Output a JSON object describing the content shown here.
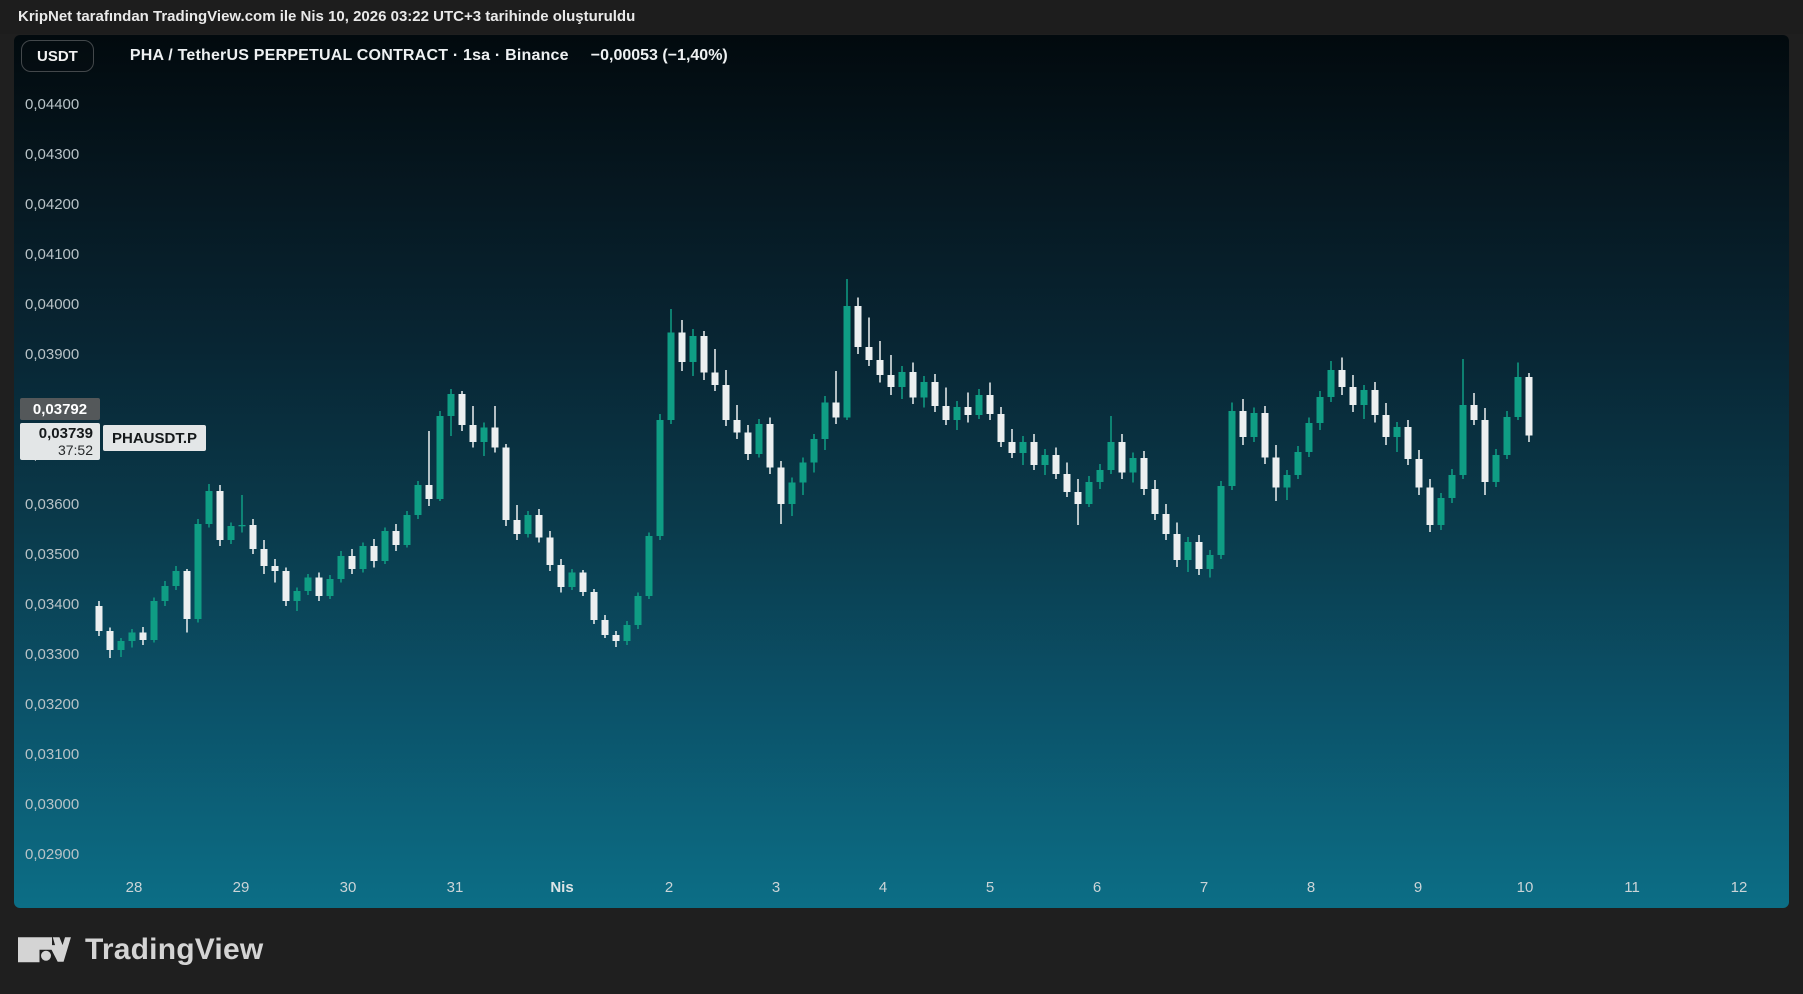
{
  "attribution": "KripNet tarafından TradingView.com ile Nis 10, 2026 03:22 UTC+3 tarihinde oluşturuldu",
  "header": {
    "currency_button": "USDT",
    "symbol_title": "PHA / TetherUS PERPETUAL CONTRACT · 1sa · Binance",
    "change": "−0,00053 (−1,40%)"
  },
  "price_scale": {
    "badge_price": "0,03792",
    "last_price": "0,03739",
    "countdown": "37:52",
    "symbol_label": "PHAUSDT.P"
  },
  "footer": {
    "logo_text": "TradingView"
  },
  "chart_data": {
    "type": "candlestick",
    "title": "PHA / TetherUS PERPETUAL CONTRACT",
    "symbol": "PHAUSDT.P",
    "interval": "1sa",
    "exchange": "Binance",
    "last_price": 0.03739,
    "change_abs": -0.00053,
    "change_pct": -1.4,
    "price_unit": "price values in 1e-5 USDT (3739 = 0,03739)",
    "up_color": "#0f9d84",
    "down_color": "#eceff0",
    "grid": "off",
    "legend_position": "none",
    "y_axis": {
      "min": 2900,
      "max": 4400,
      "step": 100,
      "labels": [
        "0,04400",
        "0,04300",
        "0,04200",
        "0,04100",
        "0,04000",
        "0,03900",
        "0,03800",
        "0,03700",
        "0,03600",
        "0,03500",
        "0,03400",
        "0,03300",
        "0,03200",
        "0,03100",
        "0,03000",
        "0,02900"
      ]
    },
    "x_axis": {
      "labels": [
        {
          "label": "28",
          "bold": false
        },
        {
          "label": "29",
          "bold": false
        },
        {
          "label": "30",
          "bold": false
        },
        {
          "label": "31",
          "bold": false
        },
        {
          "label": "Nis",
          "bold": true
        },
        {
          "label": "2",
          "bold": false
        },
        {
          "label": "3",
          "bold": false
        },
        {
          "label": "4",
          "bold": false
        },
        {
          "label": "5",
          "bold": false
        },
        {
          "label": "6",
          "bold": false
        },
        {
          "label": "7",
          "bold": false
        },
        {
          "label": "8",
          "bold": false
        },
        {
          "label": "9",
          "bold": false
        },
        {
          "label": "10",
          "bold": false
        },
        {
          "label": "11",
          "bold": false
        },
        {
          "label": "12",
          "bold": false
        }
      ]
    },
    "candles": [
      [
        3398,
        3408,
        3338,
        3348
      ],
      [
        3348,
        3355,
        3294,
        3310
      ],
      [
        3310,
        3334,
        3296,
        3328
      ],
      [
        3328,
        3352,
        3315,
        3345
      ],
      [
        3345,
        3356,
        3320,
        3330
      ],
      [
        3330,
        3415,
        3325,
        3408
      ],
      [
        3408,
        3448,
        3398,
        3438
      ],
      [
        3438,
        3478,
        3430,
        3468
      ],
      [
        3468,
        3472,
        3345,
        3372
      ],
      [
        3372,
        3572,
        3365,
        3562
      ],
      [
        3562,
        3642,
        3555,
        3628
      ],
      [
        3628,
        3640,
        3518,
        3530
      ],
      [
        3530,
        3565,
        3522,
        3558
      ],
      [
        3558,
        3620,
        3545,
        3560
      ],
      [
        3560,
        3572,
        3502,
        3512
      ],
      [
        3512,
        3530,
        3462,
        3478
      ],
      [
        3478,
        3492,
        3445,
        3468
      ],
      [
        3468,
        3475,
        3398,
        3408
      ],
      [
        3408,
        3435,
        3388,
        3428
      ],
      [
        3428,
        3462,
        3420,
        3455
      ],
      [
        3455,
        3465,
        3408,
        3418
      ],
      [
        3418,
        3460,
        3412,
        3452
      ],
      [
        3452,
        3508,
        3445,
        3498
      ],
      [
        3498,
        3512,
        3462,
        3472
      ],
      [
        3472,
        3525,
        3465,
        3518
      ],
      [
        3518,
        3532,
        3475,
        3488
      ],
      [
        3488,
        3555,
        3482,
        3548
      ],
      [
        3548,
        3562,
        3508,
        3520
      ],
      [
        3520,
        3588,
        3515,
        3580
      ],
      [
        3580,
        3648,
        3572,
        3640
      ],
      [
        3640,
        3748,
        3598,
        3612
      ],
      [
        3612,
        3788,
        3608,
        3778
      ],
      [
        3778,
        3832,
        3738,
        3822
      ],
      [
        3822,
        3828,
        3748,
        3760
      ],
      [
        3760,
        3798,
        3715,
        3726
      ],
      [
        3726,
        3765,
        3698,
        3755
      ],
      [
        3755,
        3798,
        3705,
        3715
      ],
      [
        3715,
        3722,
        3558,
        3570
      ],
      [
        3570,
        3600,
        3530,
        3542
      ],
      [
        3542,
        3588,
        3535,
        3580
      ],
      [
        3580,
        3592,
        3525,
        3535
      ],
      [
        3535,
        3548,
        3468,
        3480
      ],
      [
        3480,
        3492,
        3425,
        3436
      ],
      [
        3436,
        3472,
        3430,
        3465
      ],
      [
        3465,
        3470,
        3418,
        3426
      ],
      [
        3426,
        3432,
        3362,
        3370
      ],
      [
        3370,
        3380,
        3334,
        3340
      ],
      [
        3340,
        3348,
        3316,
        3328
      ],
      [
        3328,
        3368,
        3320,
        3360
      ],
      [
        3360,
        3425,
        3352,
        3418
      ],
      [
        3418,
        3545,
        3412,
        3538
      ],
      [
        3538,
        3782,
        3530,
        3770
      ],
      [
        3770,
        3992,
        3762,
        3945
      ],
      [
        3945,
        3970,
        3868,
        3886
      ],
      [
        3886,
        3952,
        3858,
        3938
      ],
      [
        3938,
        3948,
        3850,
        3865
      ],
      [
        3865,
        3912,
        3828,
        3840
      ],
      [
        3840,
        3870,
        3758,
        3770
      ],
      [
        3770,
        3800,
        3732,
        3745
      ],
      [
        3745,
        3760,
        3690,
        3702
      ],
      [
        3702,
        3772,
        3695,
        3762
      ],
      [
        3762,
        3775,
        3662,
        3675
      ],
      [
        3675,
        3688,
        3562,
        3602
      ],
      [
        3602,
        3655,
        3578,
        3645
      ],
      [
        3645,
        3695,
        3620,
        3685
      ],
      [
        3685,
        3742,
        3665,
        3732
      ],
      [
        3732,
        3818,
        3710,
        3805
      ],
      [
        3805,
        3868,
        3762,
        3775
      ],
      [
        3775,
        4052,
        3770,
        3998
      ],
      [
        3998,
        4015,
        3902,
        3916
      ],
      [
        3916,
        3975,
        3878,
        3890
      ],
      [
        3890,
        3928,
        3845,
        3860
      ],
      [
        3860,
        3900,
        3820,
        3836
      ],
      [
        3836,
        3878,
        3812,
        3866
      ],
      [
        3866,
        3885,
        3802,
        3815
      ],
      [
        3815,
        3858,
        3795,
        3846
      ],
      [
        3846,
        3862,
        3786,
        3798
      ],
      [
        3798,
        3835,
        3760,
        3770
      ],
      [
        3770,
        3808,
        3750,
        3796
      ],
      [
        3796,
        3825,
        3765,
        3780
      ],
      [
        3780,
        3832,
        3772,
        3820
      ],
      [
        3820,
        3845,
        3770,
        3782
      ],
      [
        3782,
        3796,
        3716,
        3726
      ],
      [
        3726,
        3752,
        3694,
        3704
      ],
      [
        3704,
        3738,
        3680,
        3726
      ],
      [
        3726,
        3742,
        3670,
        3680
      ],
      [
        3680,
        3712,
        3660,
        3700
      ],
      [
        3700,
        3715,
        3652,
        3662
      ],
      [
        3662,
        3685,
        3616,
        3626
      ],
      [
        3626,
        3652,
        3560,
        3602
      ],
      [
        3602,
        3658,
        3596,
        3646
      ],
      [
        3646,
        3682,
        3632,
        3670
      ],
      [
        3670,
        3778,
        3662,
        3726
      ],
      [
        3726,
        3742,
        3652,
        3665
      ],
      [
        3665,
        3705,
        3645,
        3694
      ],
      [
        3694,
        3708,
        3620,
        3632
      ],
      [
        3632,
        3650,
        3570,
        3582
      ],
      [
        3582,
        3602,
        3530,
        3542
      ],
      [
        3542,
        3565,
        3476,
        3490
      ],
      [
        3490,
        3536,
        3466,
        3526
      ],
      [
        3526,
        3540,
        3460,
        3472
      ],
      [
        3472,
        3510,
        3455,
        3500
      ],
      [
        3500,
        3648,
        3492,
        3638
      ],
      [
        3638,
        3805,
        3630,
        3788
      ],
      [
        3788,
        3812,
        3720,
        3736
      ],
      [
        3736,
        3795,
        3726,
        3784
      ],
      [
        3784,
        3798,
        3682,
        3695
      ],
      [
        3695,
        3720,
        3608,
        3635
      ],
      [
        3635,
        3670,
        3610,
        3660
      ],
      [
        3660,
        3718,
        3652,
        3706
      ],
      [
        3706,
        3775,
        3696,
        3764
      ],
      [
        3764,
        3828,
        3750,
        3816
      ],
      [
        3816,
        3888,
        3806,
        3870
      ],
      [
        3870,
        3895,
        3820,
        3836
      ],
      [
        3836,
        3860,
        3786,
        3800
      ],
      [
        3800,
        3840,
        3772,
        3830
      ],
      [
        3830,
        3846,
        3765,
        3780
      ],
      [
        3780,
        3804,
        3720,
        3736
      ],
      [
        3736,
        3766,
        3706,
        3756
      ],
      [
        3756,
        3770,
        3680,
        3692
      ],
      [
        3692,
        3710,
        3620,
        3635
      ],
      [
        3635,
        3652,
        3546,
        3560
      ],
      [
        3560,
        3624,
        3550,
        3614
      ],
      [
        3614,
        3672,
        3604,
        3660
      ],
      [
        3660,
        3892,
        3652,
        3800
      ],
      [
        3800,
        3824,
        3760,
        3770
      ],
      [
        3770,
        3794,
        3620,
        3646
      ],
      [
        3646,
        3712,
        3636,
        3700
      ],
      [
        3700,
        3788,
        3692,
        3776
      ],
      [
        3776,
        3885,
        3770,
        3856
      ],
      [
        3856,
        3864,
        3726,
        3739
      ]
    ]
  }
}
